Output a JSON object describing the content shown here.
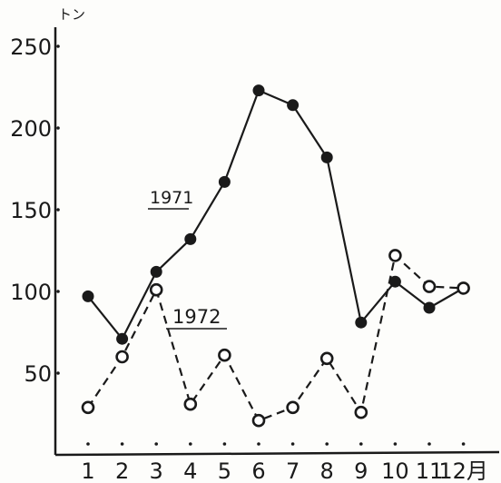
{
  "chart_data": {
    "type": "line",
    "categories": [
      "1",
      "2",
      "3",
      "4",
      "5",
      "6",
      "7",
      "8",
      "9",
      "10",
      "11",
      "12"
    ],
    "x_unit": "月",
    "y_unit": "トン",
    "ylim": [
      0,
      250
    ],
    "yticks": [
      "50",
      "100",
      "150",
      "200",
      "250"
    ],
    "grid": false,
    "series": [
      {
        "name": "1971",
        "style": "solid",
        "marker": "filled-circle",
        "values": [
          97,
          71,
          112,
          132,
          167,
          223,
          214,
          182,
          81,
          106,
          90,
          102
        ]
      },
      {
        "name": "1972",
        "style": "dashed",
        "marker": "open-circle",
        "values": [
          29,
          60,
          101,
          31,
          61,
          21,
          29,
          59,
          26,
          122,
          103,
          102
        ]
      }
    ]
  },
  "colors": {
    "ink": "#1a1a1a",
    "background": "#fdfdfb"
  }
}
